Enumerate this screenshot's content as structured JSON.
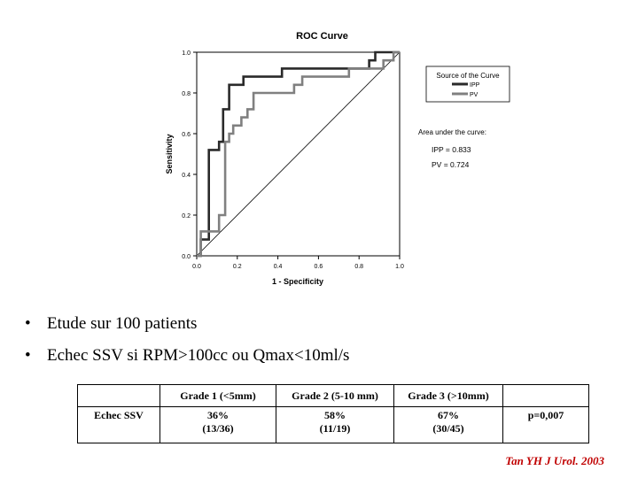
{
  "chart_data": {
    "type": "line",
    "title": "ROC Curve",
    "xlabel": "1 - Specificity",
    "ylabel": "Sensitivity",
    "xlim": [
      0,
      1
    ],
    "ylim": [
      0,
      1
    ],
    "xticks": [
      "0.0",
      "0.2",
      "0.4",
      "0.6",
      "0.8",
      "1.0"
    ],
    "yticks": [
      "0.0",
      "0.2",
      "0.4",
      "0.6",
      "0.8",
      "1.0"
    ],
    "grid": false,
    "legend_title": "Source of the Curve",
    "legend_position": "right",
    "series": [
      {
        "name": "IPP",
        "color": "#2a2a2a",
        "x": [
          0,
          0.02,
          0.02,
          0.06,
          0.06,
          0.11,
          0.11,
          0.13,
          0.13,
          0.16,
          0.16,
          0.23,
          0.23,
          0.42,
          0.42,
          0.66,
          0.66,
          0.85,
          0.85,
          0.88,
          0.88,
          0.93,
          0.93,
          1.0
        ],
        "y": [
          0,
          0,
          0.08,
          0.08,
          0.52,
          0.52,
          0.56,
          0.56,
          0.72,
          0.72,
          0.84,
          0.84,
          0.88,
          0.88,
          0.92,
          0.92,
          0.92,
          0.92,
          0.96,
          0.96,
          1.0,
          1.0,
          1.0,
          1.0
        ]
      },
      {
        "name": "PV",
        "color": "#808080",
        "x": [
          0,
          0.02,
          0.02,
          0.11,
          0.11,
          0.14,
          0.14,
          0.16,
          0.16,
          0.18,
          0.18,
          0.2,
          0.2,
          0.22,
          0.22,
          0.25,
          0.25,
          0.28,
          0.28,
          0.48,
          0.48,
          0.52,
          0.52,
          0.75,
          0.75,
          0.92,
          0.92,
          0.97,
          0.97,
          1.0
        ],
        "y": [
          0,
          0,
          0.12,
          0.12,
          0.2,
          0.2,
          0.56,
          0.56,
          0.6,
          0.6,
          0.64,
          0.64,
          0.64,
          0.64,
          0.68,
          0.68,
          0.72,
          0.72,
          0.8,
          0.8,
          0.84,
          0.84,
          0.88,
          0.88,
          0.92,
          0.92,
          0.96,
          0.96,
          1.0,
          1.0
        ]
      }
    ],
    "reference_line": "diagonal",
    "annotation_title": "Area under the curve:",
    "auc": [
      {
        "label": "IPP = 0.833"
      },
      {
        "label": "PV = 0.724"
      }
    ]
  },
  "bullets": [
    "Etude sur 100 patients",
    "Echec SSV si RPM>100cc ou Qmax<10ml/s"
  ],
  "table": {
    "headers": [
      "",
      "Grade 1 (<5mm)",
      "Grade 2 (5-10 mm)",
      "Grade 3 (>10mm)",
      ""
    ],
    "row": {
      "label": "Echec SSV",
      "cells": [
        {
          "value": "36%",
          "fraction": "(13/36)"
        },
        {
          "value": "58%",
          "fraction": "(11/19)"
        },
        {
          "value": "67%",
          "fraction": "(30/45)"
        }
      ],
      "pvalue": "p=0,007"
    }
  },
  "citation": "Tan YH J Urol. 2003",
  "bullet_symbol": "•"
}
